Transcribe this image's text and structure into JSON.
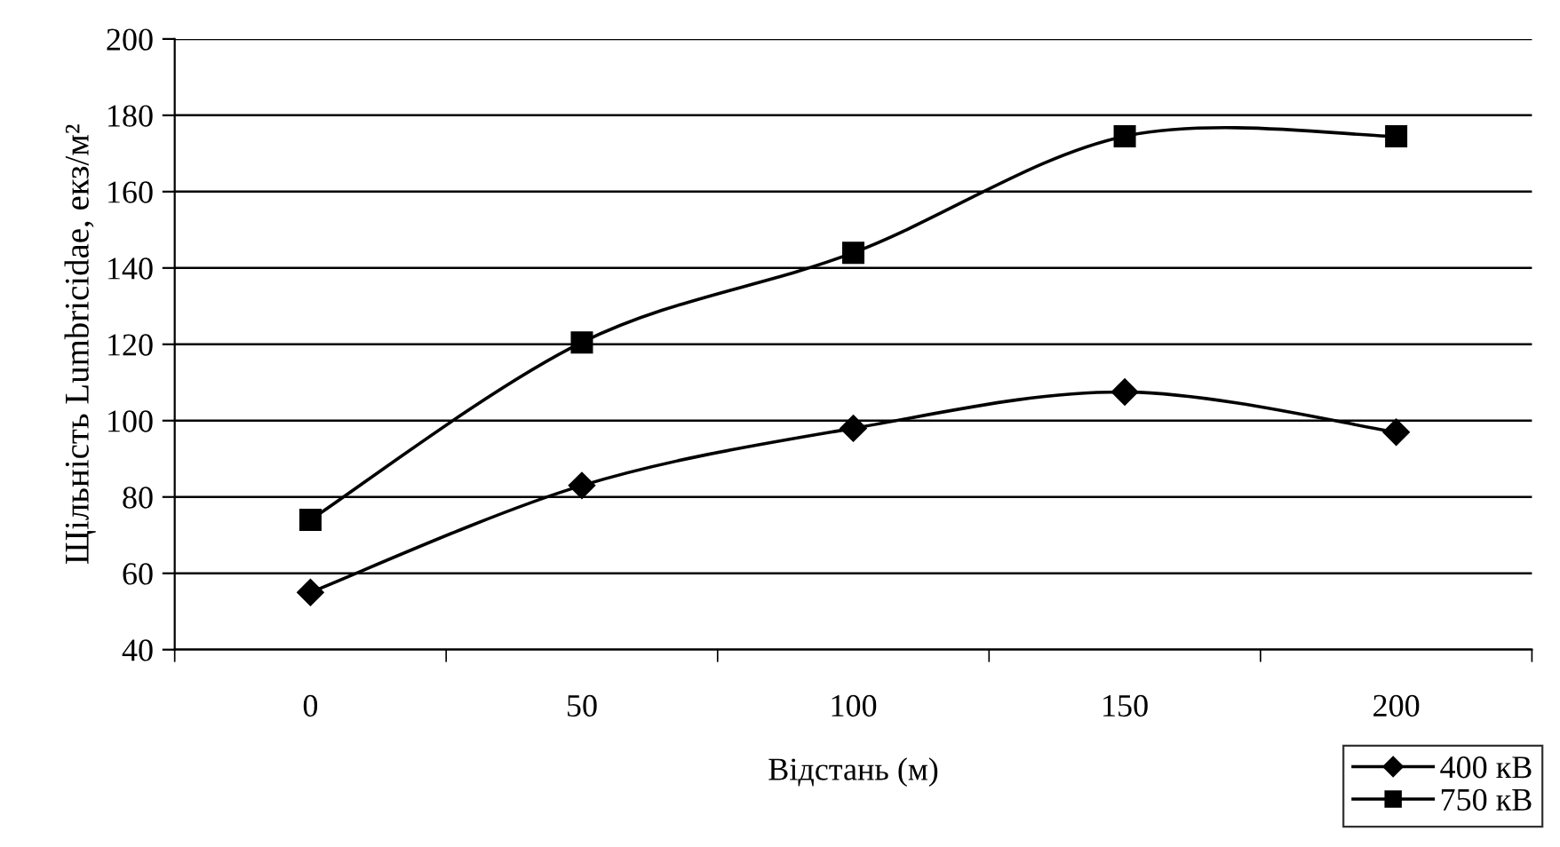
{
  "chart_data": {
    "type": "line",
    "xlabel": "Відстань (м)",
    "ylabel": "Щільність Lumbricidae, екз/м²",
    "categories": [
      "0",
      "50",
      "100",
      "150",
      "200"
    ],
    "series": [
      {
        "name": "400 кВ",
        "color": "#000000",
        "marker": "diamond",
        "values": [
          55,
          83,
          98,
          107.5,
          97
        ]
      },
      {
        "name": "750 кВ",
        "color": "#000000",
        "marker": "square",
        "values": [
          74,
          120.5,
          144,
          174.5,
          174.5
        ]
      }
    ],
    "ylim": [
      40,
      200
    ],
    "yticks": [
      40,
      60,
      80,
      100,
      120,
      140,
      160,
      180,
      200
    ],
    "grid": "y",
    "legend": "bottom right",
    "line_style": "solid"
  }
}
